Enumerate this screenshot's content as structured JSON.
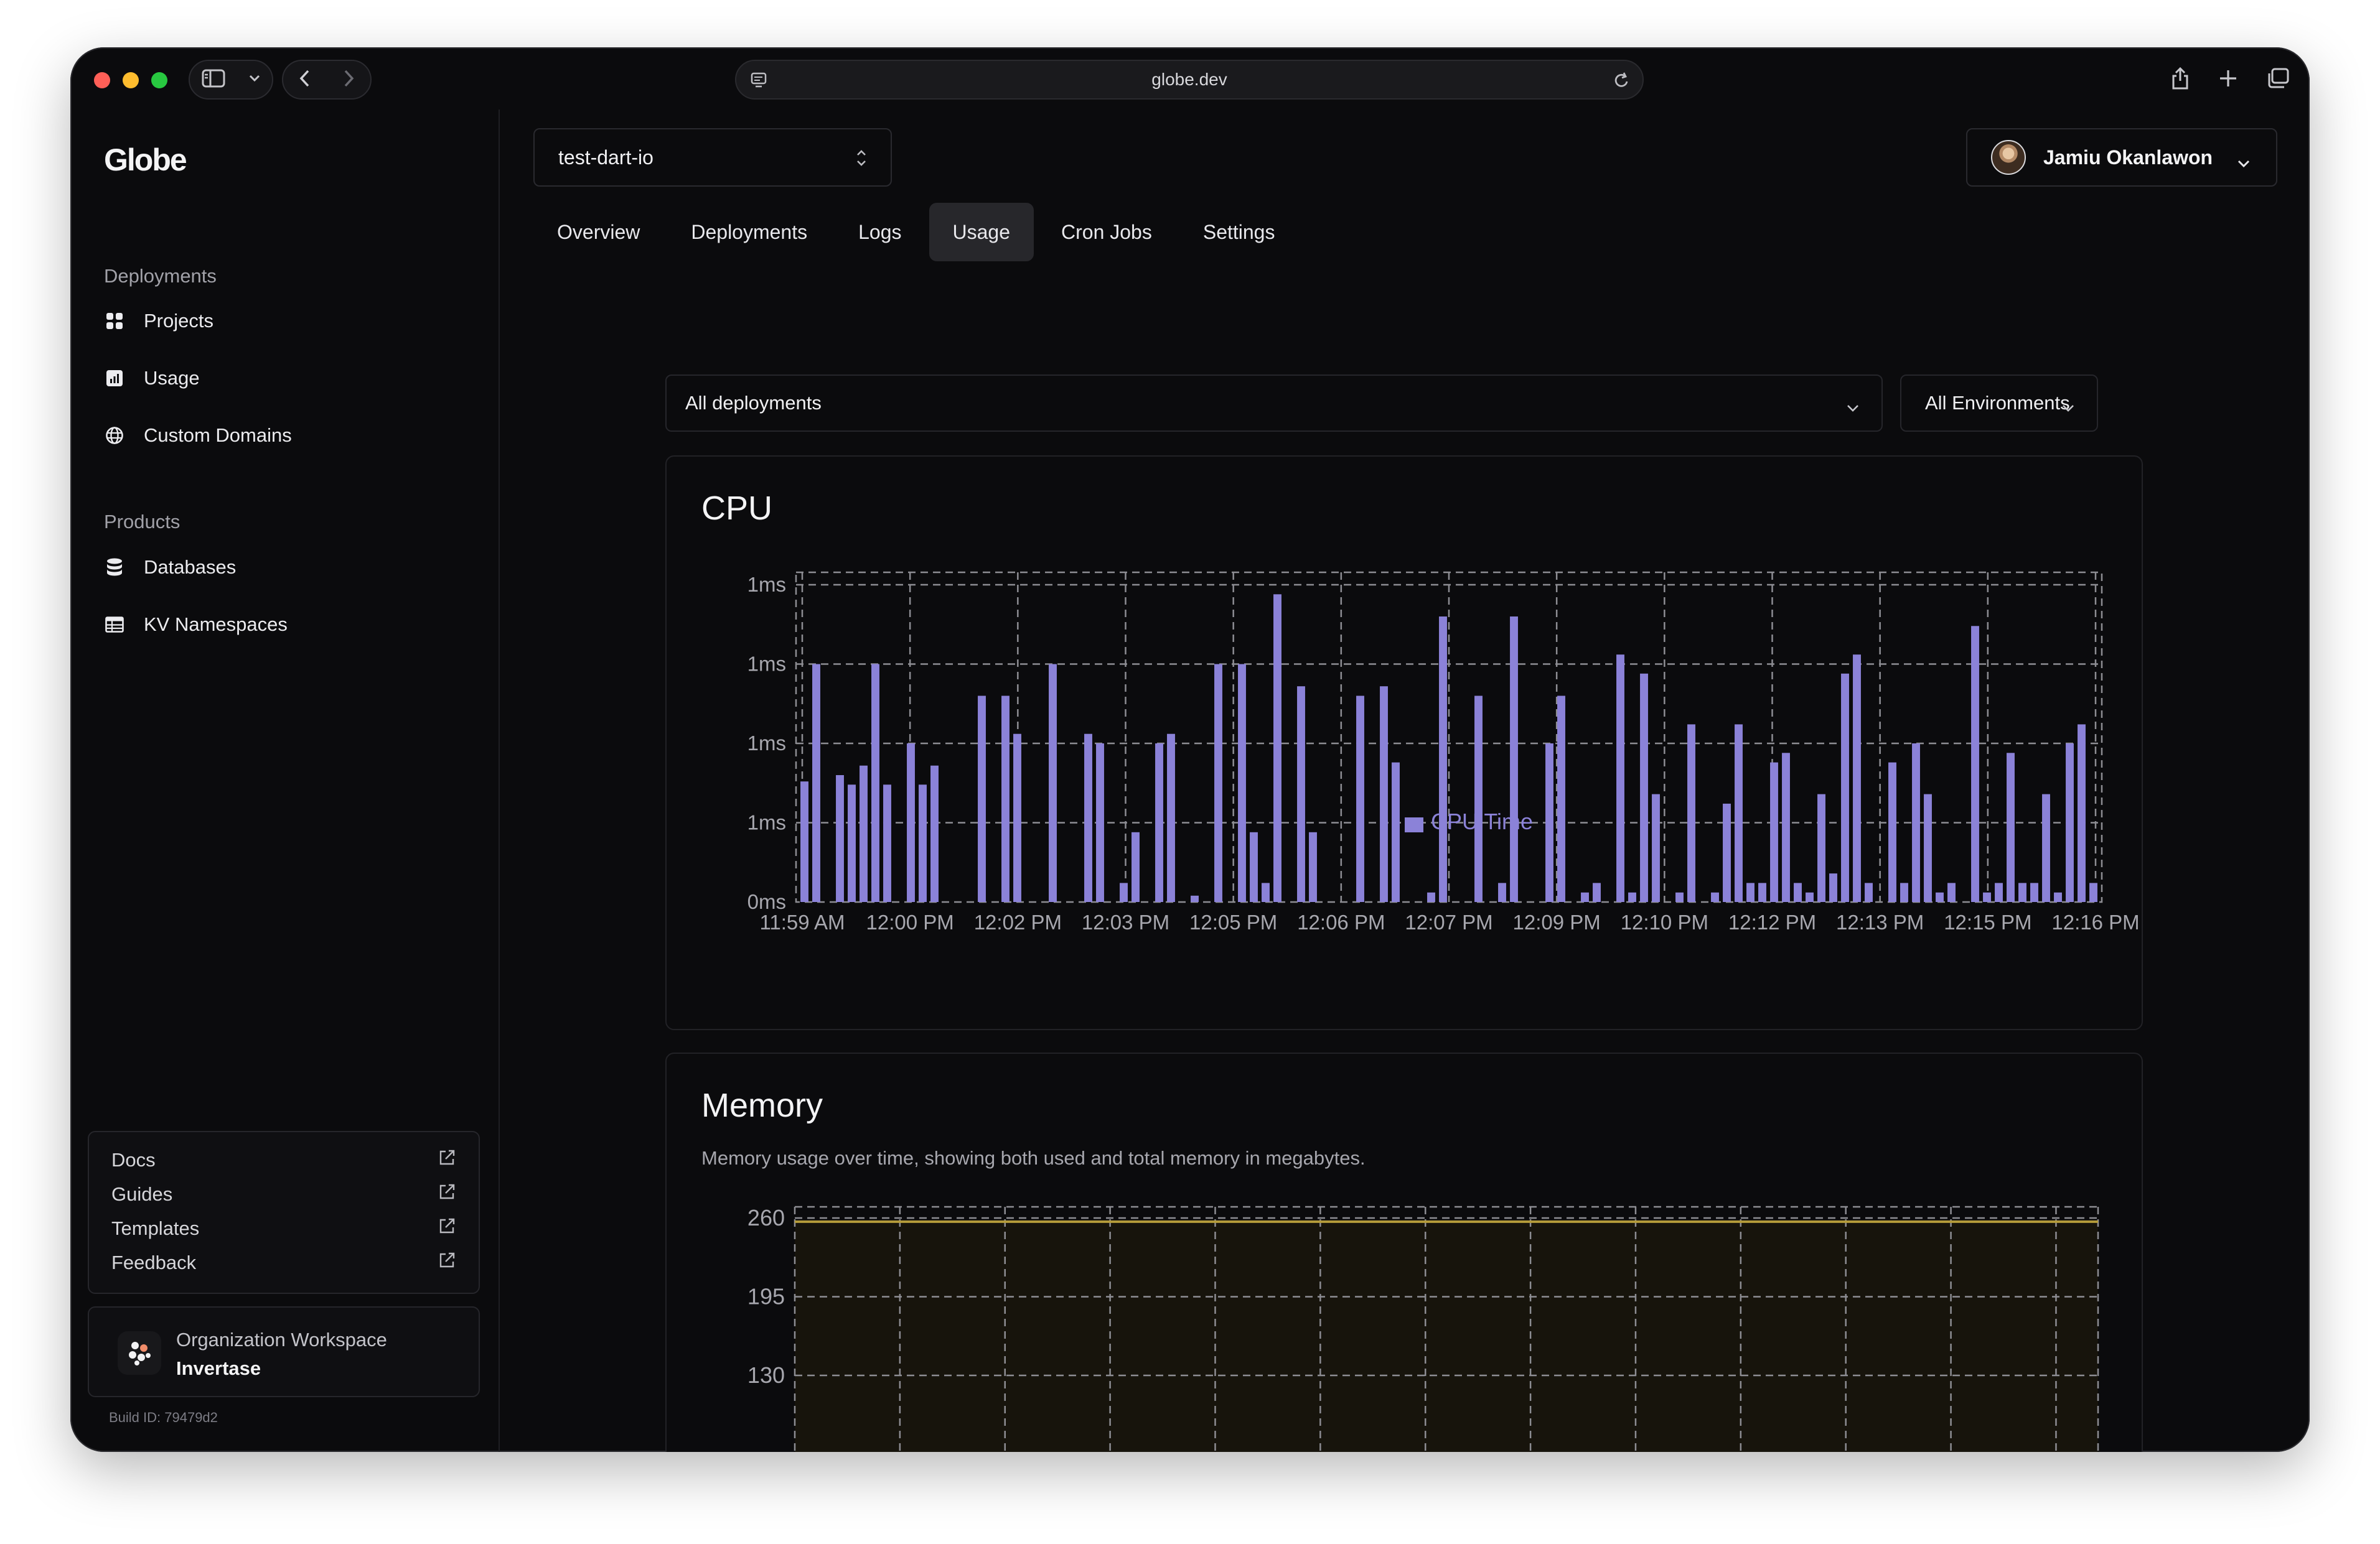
{
  "browser": {
    "url": "globe.dev"
  },
  "sidebar": {
    "logo": "Globe",
    "deployments_label": "Deployments",
    "deployments_items": [
      {
        "label": "Projects",
        "icon": "grid-icon"
      },
      {
        "label": "Usage",
        "icon": "chart-icon"
      },
      {
        "label": "Custom Domains",
        "icon": "globe-icon"
      }
    ],
    "products_label": "Products",
    "products_items": [
      {
        "label": "Databases",
        "icon": "database-icon"
      },
      {
        "label": "KV Namespaces",
        "icon": "table-icon"
      }
    ],
    "links": [
      {
        "label": "Docs",
        "icon": "external-link-icon"
      },
      {
        "label": "Guides",
        "icon": "external-link-icon"
      },
      {
        "label": "Templates",
        "icon": "external-link-icon"
      },
      {
        "label": "Feedback",
        "icon": "external-link-icon"
      }
    ],
    "org": {
      "label": "Organization Workspace",
      "name": "Invertase"
    },
    "build_id": "Build ID: 79479d2"
  },
  "header": {
    "project": "test-dart-io",
    "user": "Jamiu Okanlawon"
  },
  "tabs": [
    {
      "label": "Overview",
      "active": false
    },
    {
      "label": "Deployments",
      "active": false
    },
    {
      "label": "Logs",
      "active": false
    },
    {
      "label": "Usage",
      "active": true
    },
    {
      "label": "Cron Jobs",
      "active": false
    },
    {
      "label": "Settings",
      "active": false
    }
  ],
  "filters": {
    "deployment": "All deployments",
    "environment": "All Environments"
  },
  "colors": {
    "bar": "#8b82d8",
    "memory_line": "#b59b3a",
    "memory_fill": "#17140c",
    "grid": "#8d8d93"
  },
  "cpu_card": {
    "title": "CPU",
    "chart_data": {
      "type": "bar",
      "ylabels": [
        "1ms",
        "1ms",
        "1ms",
        "1ms",
        "0ms"
      ],
      "xticks": [
        "11:59 AM",
        "12:00 PM",
        "12:02 PM",
        "12:03 PM",
        "12:05 PM",
        "12:06 PM",
        "12:07 PM",
        "12:09 PM",
        "12:10 PM",
        "12:12 PM",
        "12:13 PM",
        "12:15 PM",
        "12:16 PM"
      ],
      "ylim": [
        0,
        1
      ],
      "legend": "bottom-center",
      "grid": true,
      "series": [
        {
          "name": "CPU Time",
          "values": [
            0.38,
            0.75,
            0,
            0.4,
            0.37,
            0.43,
            0.75,
            0.37,
            0,
            0.5,
            0.37,
            0.43,
            0,
            0,
            0,
            0.65,
            0,
            0.65,
            0.53,
            0,
            0,
            0.75,
            0,
            0,
            0.53,
            0.5,
            0,
            0.06,
            0.22,
            0,
            0.5,
            0.53,
            0,
            0.02,
            0,
            0.75,
            0,
            0.75,
            0.22,
            0.06,
            0.97,
            0,
            0.68,
            0.22,
            0,
            0,
            0,
            0.65,
            0,
            0.68,
            0.44,
            0,
            0,
            0.03,
            0.9,
            0,
            0,
            0.65,
            0,
            0.06,
            0.9,
            0,
            0,
            0.5,
            0.65,
            0,
            0.03,
            0.06,
            0,
            0.78,
            0.03,
            0.72,
            0.34,
            0,
            0.03,
            0.56,
            0,
            0.03,
            0.31,
            0.56,
            0.06,
            0.06,
            0.44,
            0.47,
            0.06,
            0.03,
            0.34,
            0.09,
            0.72,
            0.78,
            0.06,
            0,
            0.44,
            0.06,
            0.5,
            0.34,
            0.03,
            0.06,
            0,
            0.87,
            0.03,
            0.06,
            0.47,
            0.06,
            0.06,
            0.34,
            0.03,
            0.5,
            0.56,
            0.06
          ]
        }
      ]
    }
  },
  "memory_card": {
    "title": "Memory",
    "description": "Memory usage over time, showing both used and total memory in megabytes.",
    "chart_data": {
      "type": "area",
      "ylabels": [
        "260",
        "195",
        "130"
      ],
      "yticks": [
        260,
        195,
        130
      ],
      "ylim": [
        0,
        260
      ],
      "grid": true,
      "series": [
        {
          "values": [
            257,
            257,
            257,
            257,
            257,
            257,
            257,
            257,
            257,
            257,
            257,
            257,
            257
          ]
        }
      ]
    }
  }
}
